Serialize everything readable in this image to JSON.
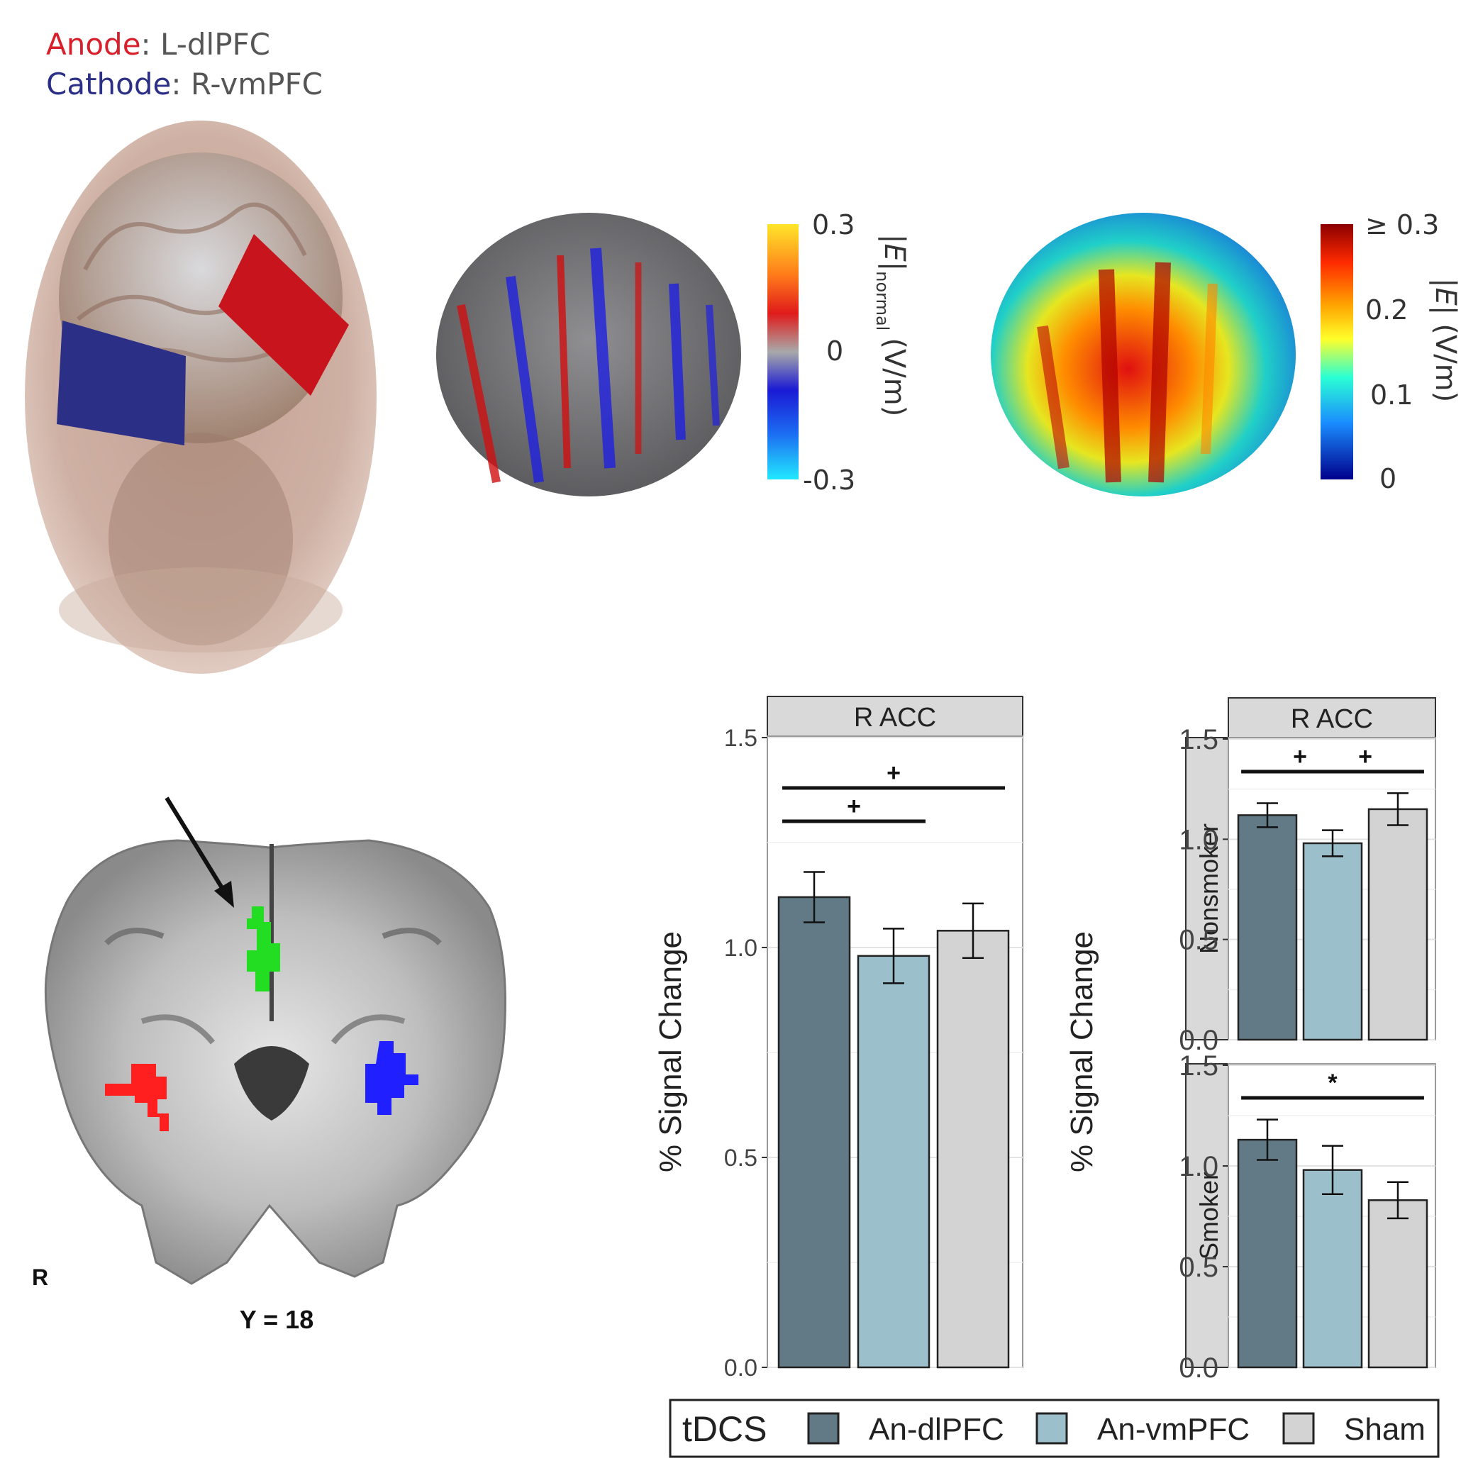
{
  "montage": {
    "anode_word": "Anode",
    "anode_target": ": L-dlPFC",
    "cathode_word": "Cathode",
    "cathode_target": ": R-vmPFC",
    "anode_color": "#d8202c",
    "cathode_color": "#2c2f86"
  },
  "colorbars": {
    "normal": {
      "ticks": [
        "0.3",
        "0",
        "-0.3"
      ],
      "label_main": "|E|",
      "label_sub": "normal",
      "label_unit": "(V/m)"
    },
    "magnitude": {
      "ticks": [
        "≥ 0.3",
        "0.2",
        "0.1",
        "0"
      ],
      "label_main": "|E|",
      "label_unit": "(V/m)"
    }
  },
  "slice": {
    "side_label": "R",
    "coord_label": "Y = 18",
    "roi_colors": {
      "acc": "#22dd22",
      "right_insula": "#ff1f1f",
      "left_insula": "#1f1fff"
    }
  },
  "chart_data": [
    {
      "type": "bar",
      "title": "R ACC",
      "ylabel": "% Signal Change",
      "categories": [
        "An-dlPFC",
        "An-vmPFC",
        "Sham"
      ],
      "values": [
        1.12,
        0.98,
        1.04
      ],
      "errors": [
        0.06,
        0.065,
        0.065
      ],
      "ylim": [
        0,
        1.5
      ],
      "yticks": [
        "0.0",
        "0.5",
        "1.0",
        "1.5"
      ],
      "annotations": [
        {
          "from": "An-dlPFC",
          "to": "An-vmPFC",
          "label": "+"
        },
        {
          "from": "An-dlPFC",
          "to": "Sham",
          "label": "+"
        }
      ]
    },
    {
      "type": "bar",
      "title": "R ACC",
      "ylabel": "% Signal Change",
      "categories": [
        "An-dlPFC",
        "An-vmPFC",
        "Sham"
      ],
      "facets": [
        {
          "name": "Nonsmoker",
          "values": [
            1.12,
            0.98,
            1.15
          ],
          "errors": [
            0.06,
            0.065,
            0.08
          ],
          "annotations": [
            {
              "from": "An-dlPFC",
              "to": "An-vmPFC",
              "label": "+"
            },
            {
              "from": "An-vmPFC",
              "to": "Sham",
              "label": "+"
            }
          ]
        },
        {
          "name": "Smoker",
          "values": [
            1.13,
            0.98,
            0.83
          ],
          "errors": [
            0.1,
            0.12,
            0.09
          ],
          "annotations": [
            {
              "from": "An-dlPFC",
              "to": "Sham",
              "label": "*"
            }
          ]
        }
      ],
      "ylim": [
        0,
        1.5
      ],
      "yticks": [
        "0.0",
        "0.5",
        "1.0",
        "1.5"
      ]
    }
  ],
  "legend": {
    "title": "tDCS",
    "items": [
      {
        "label": "An-dlPFC",
        "color": "#617a86"
      },
      {
        "label": "An-vmPFC",
        "color": "#9cbfcc"
      },
      {
        "label": "Sham",
        "color": "#d3d3d3"
      }
    ]
  }
}
